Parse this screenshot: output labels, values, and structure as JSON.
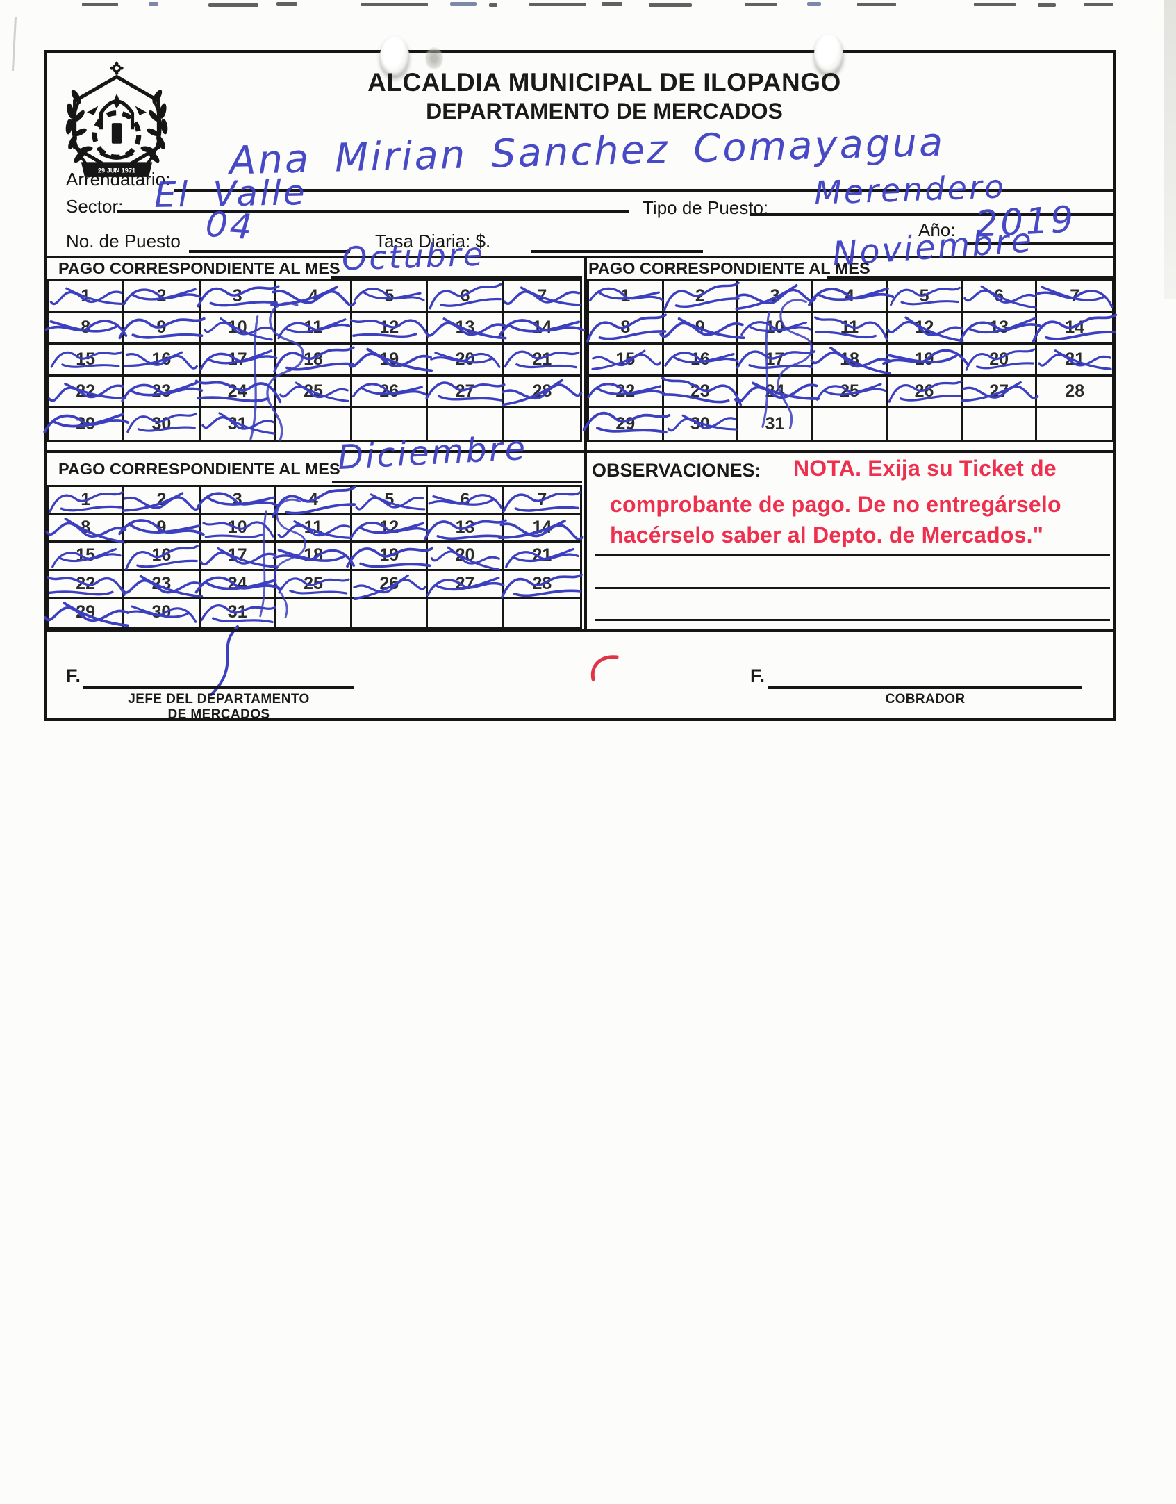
{
  "scan": {
    "title_line1": "ALCALDIA MUNICIPAL DE ILOPANGO",
    "title_line2": "DEPARTAMENTO DE MERCADOS",
    "seal_banner": "29 JUN 1971"
  },
  "fields": {
    "arrendatario_label": "Arrendatario:",
    "arrendatario_value": "Ana Mirian Sanchez Comayagua",
    "sector_label": "Sector:",
    "sector_value": "El Valle",
    "tipo_puesto_label": "Tipo de Puesto:",
    "tipo_puesto_value": "Merendero",
    "no_puesto_label": "No. de Puesto",
    "no_puesto_value": "04",
    "tasa_label": "Tasa Diaria: $.",
    "tasa_value": "",
    "anio_label": "Año:",
    "anio_value": "2019"
  },
  "calendars": [
    {
      "section_label": "PAGO CORRESPONDIENTE AL MES",
      "month": "Octubre",
      "day_count": 31,
      "signed_days": [
        1,
        2,
        3,
        4,
        5,
        6,
        7,
        8,
        9,
        10,
        11,
        12,
        13,
        14,
        15,
        16,
        17,
        18,
        19,
        20,
        21,
        22,
        23,
        24,
        25,
        26,
        27,
        28,
        29,
        30,
        31
      ]
    },
    {
      "section_label": "PAGO CORRESPONDIENTE AL MES",
      "month": "Noviembre",
      "day_count": 31,
      "signed_days": [
        1,
        2,
        3,
        4,
        5,
        6,
        7,
        8,
        9,
        10,
        11,
        12,
        13,
        14,
        15,
        16,
        17,
        18,
        19,
        20,
        21,
        22,
        23,
        24,
        25,
        26,
        27,
        29,
        30
      ]
    },
    {
      "section_label": "PAGO CORRESPONDIENTE AL MES",
      "month": "Diciembre",
      "day_count": 31,
      "signed_days": [
        1,
        2,
        3,
        4,
        5,
        6,
        7,
        8,
        9,
        10,
        11,
        12,
        13,
        14,
        15,
        16,
        17,
        18,
        19,
        20,
        21,
        22,
        23,
        24,
        25,
        26,
        27,
        28,
        29,
        30,
        31
      ]
    }
  ],
  "observaciones": {
    "label": "OBSERVACIONES:",
    "note_lines": [
      "NOTA. Exija su Ticket de",
      "comprobante de pago. De no entregárselo",
      "hacérselo saber al Depto. de Mercados.\""
    ]
  },
  "signatures": {
    "left_f": "F.",
    "left_caption_line1": "JEFE DEL DEPARTAMENTO",
    "left_caption_line2": "DE MERCADOS",
    "right_f": "F.",
    "right_caption": "COBRADOR"
  },
  "ink": {
    "blue": "#3a3cc2",
    "red_note": "#ee2f4d",
    "form_black": "#161616"
  }
}
